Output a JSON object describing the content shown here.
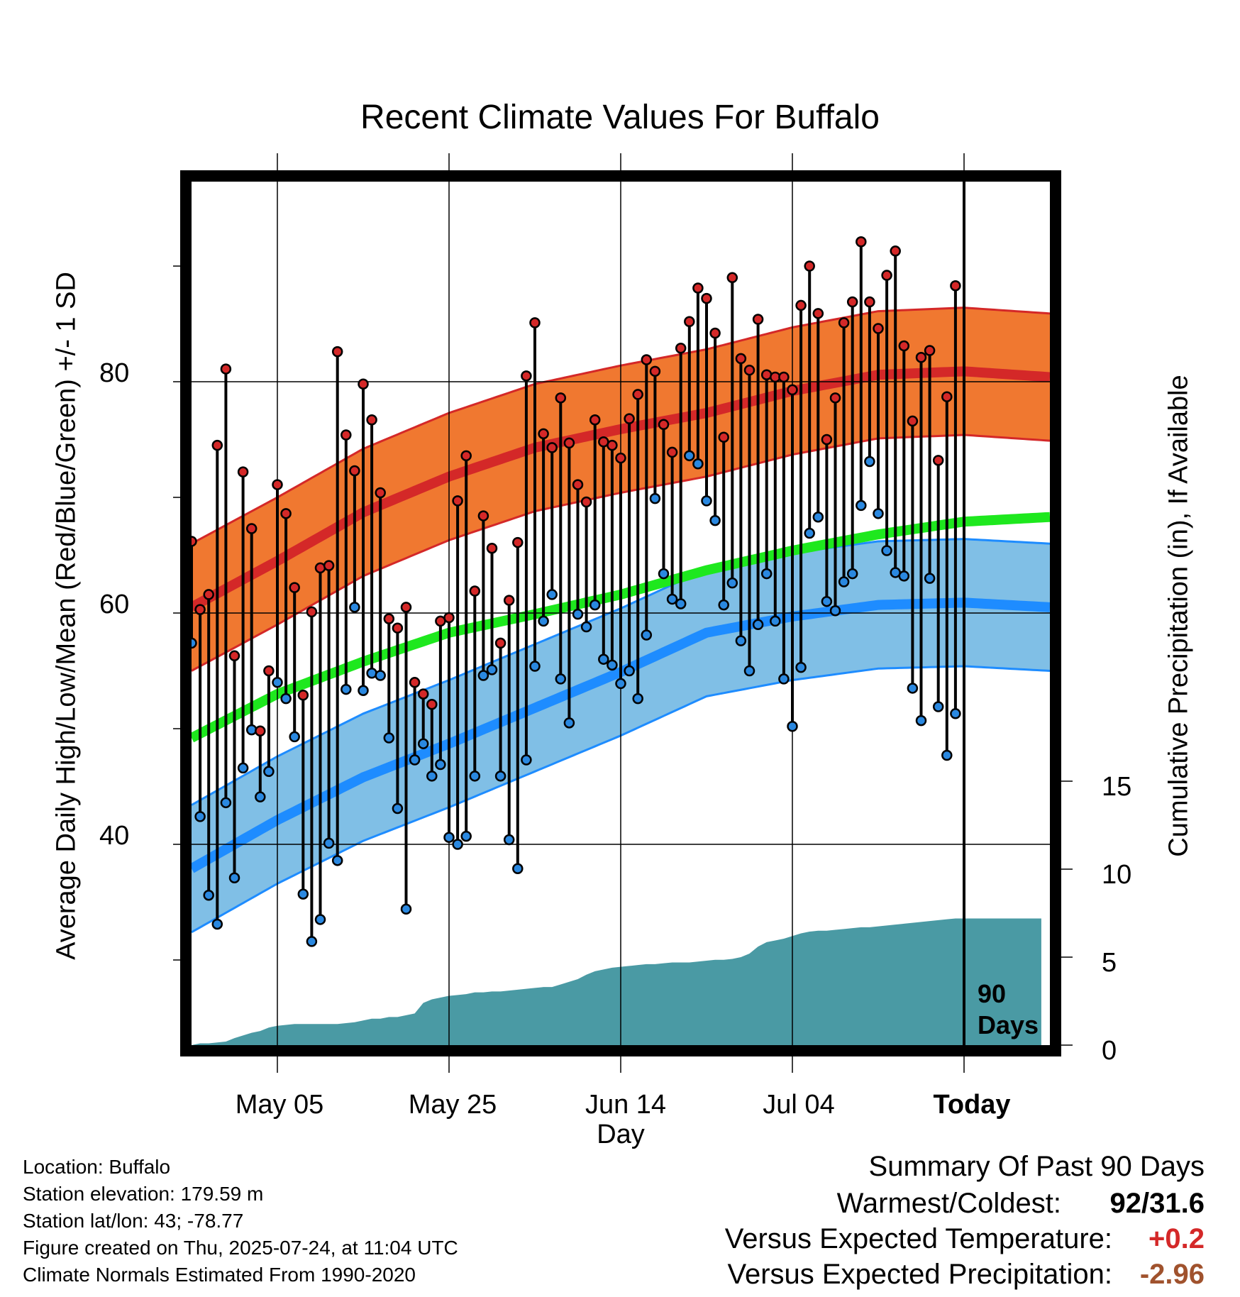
{
  "chart_data": {
    "type": "line",
    "title": "Recent Climate Values For Buffalo",
    "xlabel": "Day",
    "ylabel": "Average Daily High/Low/Mean (Red/Blue/Green) +/- 1 SD",
    "y2label": "Cumulative Precipitation (in), If Available",
    "x_ticks": [
      "May 05",
      "May 25",
      "Jun 14",
      "Jul 04",
      "Today"
    ],
    "y_ticks": [
      40,
      60,
      80
    ],
    "y2_ticks": [
      0,
      5,
      10,
      15
    ],
    "ylim": [
      26,
      100
    ],
    "y2lim": [
      0,
      15
    ],
    "x_range_days": [
      0,
      100
    ],
    "today_day": 90,
    "today_label": [
      "90",
      "Days"
    ],
    "grid": true,
    "daily": {
      "high": [
        66.2,
        60.3,
        61.6,
        74.5,
        81.1,
        56.3,
        72.2,
        67.3,
        49.8,
        55.0,
        71.1,
        68.6,
        62.2,
        52.9,
        60.1,
        63.9,
        64.1,
        82.6,
        75.4,
        72.3,
        79.8,
        76.7,
        70.4,
        59.5,
        58.7,
        60.5,
        54.0,
        53.0,
        52.1,
        59.3,
        59.6,
        69.7,
        73.6,
        61.9,
        68.4,
        65.6,
        57.4,
        61.1,
        66.1,
        80.5,
        85.1,
        75.5,
        74.3,
        78.6,
        74.7,
        71.1,
        69.6,
        76.7,
        74.8,
        74.5,
        73.4,
        76.8,
        78.9,
        81.9,
        80.9,
        76.3,
        73.9,
        82.9,
        85.2,
        88.1,
        87.2,
        84.2,
        75.2,
        89.0,
        82.0,
        81.0,
        85.4,
        80.6,
        80.4,
        80.4,
        79.3,
        86.6,
        90.0,
        85.9,
        75.0,
        78.6,
        85.1,
        86.9,
        92.1,
        86.9,
        84.6,
        89.2,
        91.3,
        83.1,
        76.6,
        82.1,
        82.7,
        73.2,
        78.7,
        88.3
      ],
      "low": [
        57.4,
        42.4,
        35.6,
        33.1,
        43.6,
        37.1,
        46.6,
        49.9,
        44.1,
        46.3,
        54.0,
        52.6,
        49.3,
        35.7,
        31.6,
        33.5,
        40.1,
        38.6,
        53.4,
        60.5,
        53.3,
        54.8,
        54.6,
        49.2,
        43.1,
        34.4,
        47.3,
        48.7,
        45.9,
        46.9,
        40.6,
        40.0,
        40.7,
        45.9,
        54.6,
        55.1,
        45.9,
        40.4,
        37.9,
        47.3,
        55.4,
        59.3,
        61.6,
        54.3,
        50.5,
        59.9,
        58.8,
        60.7,
        56.0,
        55.5,
        53.9,
        55.0,
        52.6,
        58.1,
        69.9,
        63.4,
        61.2,
        60.8,
        73.6,
        72.9,
        69.7,
        68.0,
        60.7,
        62.6,
        57.6,
        55.0,
        59.0,
        63.4,
        59.3,
        54.3,
        50.2,
        55.3,
        66.9,
        68.3,
        61.0,
        60.2,
        62.7,
        63.4,
        69.3,
        73.1,
        68.6,
        65.4,
        63.5,
        63.2,
        53.5,
        50.7,
        63.0,
        51.9,
        47.7,
        51.3
      ]
    },
    "normals": {
      "mean": [
        49.2,
        53.0,
        55.8,
        58.3,
        59.9,
        61.6,
        63.7,
        65.4,
        66.8,
        67.9,
        68.3
      ],
      "high": [
        60.5,
        64.5,
        68.7,
        71.8,
        74.3,
        75.9,
        77.3,
        79.2,
        80.6,
        80.9,
        80.4
      ],
      "low": [
        37.9,
        42.1,
        45.8,
        48.7,
        51.8,
        54.9,
        58.3,
        59.7,
        60.7,
        60.9,
        60.5
      ],
      "sd": 5.5
    },
    "precip_cumulative": [
      0,
      0.1,
      0.1,
      0.15,
      0.2,
      0.4,
      0.55,
      0.7,
      0.8,
      1.0,
      1.1,
      1.15,
      1.2,
      1.2,
      1.2,
      1.2,
      1.2,
      1.2,
      1.25,
      1.3,
      1.4,
      1.5,
      1.5,
      1.6,
      1.6,
      1.7,
      1.8,
      2.4,
      2.6,
      2.7,
      2.8,
      2.85,
      2.9,
      3.0,
      3.0,
      3.05,
      3.05,
      3.1,
      3.15,
      3.2,
      3.25,
      3.3,
      3.3,
      3.45,
      3.6,
      3.75,
      4.0,
      4.2,
      4.3,
      4.4,
      4.45,
      4.5,
      4.55,
      4.6,
      4.6,
      4.65,
      4.7,
      4.7,
      4.7,
      4.75,
      4.8,
      4.85,
      4.85,
      4.9,
      5.0,
      5.2,
      5.6,
      5.85,
      5.95,
      6.05,
      6.2,
      6.35,
      6.45,
      6.5,
      6.5,
      6.55,
      6.6,
      6.65,
      6.7,
      6.7,
      6.75,
      6.8,
      6.85,
      6.9,
      6.95,
      7.0,
      7.05,
      7.1,
      7.15,
      7.2,
      7.2,
      7.2,
      7.2,
      7.2,
      7.2,
      7.2,
      7.2,
      7.2,
      7.2,
      7.2
    ]
  },
  "colors": {
    "high_band": "#f07830",
    "high_line": "#d42828",
    "low_band": "#80bfe6",
    "low_line": "#1e8cff",
    "mean_line": "#1ee81e",
    "precip_fill": "#4a9aa4",
    "high_dot": "#d42828",
    "low_dot": "#2a88e0",
    "temp_anomaly": "#d42828",
    "precip_anomaly": "#a0522d"
  },
  "footer": {
    "location": "Location: Buffalo",
    "elevation": "Station elevation: 179.59 m",
    "latlon": "Station lat/lon: 43; -78.77",
    "created": "Figure created on Thu, 2025-07-24, at 11:04 UTC",
    "normals": "Climate Normals Estimated From 1990-2020"
  },
  "summary": {
    "title": "Summary Of Past 90 Days",
    "warmest_label": "Warmest/Coldest:",
    "warmest_value": "92/31.6",
    "temp_label": "Versus Expected Temperature:",
    "temp_value": "+0.2",
    "precip_label": "Versus Expected Precipitation:",
    "precip_value": "-2.96"
  }
}
